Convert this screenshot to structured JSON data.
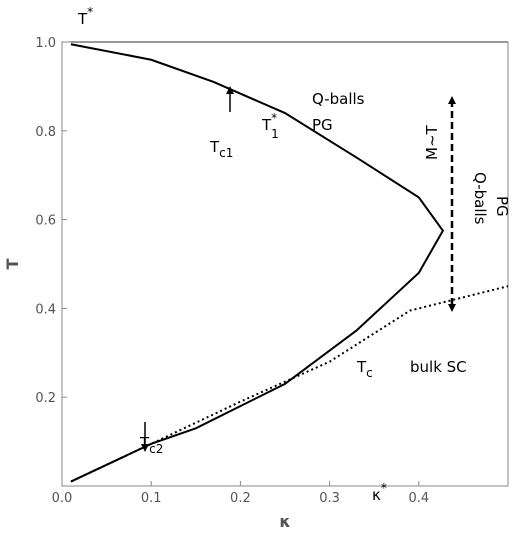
{
  "chart_data": {
    "type": "line",
    "xlabel": "κ",
    "ylabel": "T",
    "xlim": [
      0,
      0.5
    ],
    "ylim": [
      0,
      1.0
    ],
    "xticks": [
      {
        "value": 0,
        "label": "0.0"
      },
      0.1,
      0.2,
      0.3,
      0.4
    ],
    "yticks": [
      0.2,
      0.4,
      0.6,
      0.8,
      {
        "value": 1,
        "label": "1.0"
      }
    ],
    "series": [
      {
        "color": "#000000",
        "style": "solid",
        "x": [
          0.01,
          0.1,
          0.17,
          0.25,
          0.33,
          0.4,
          0.427,
          0.4,
          0.33,
          0.25,
          0.15,
          0.1,
          0.01
        ],
        "values": [
          0.995,
          0.96,
          0.91,
          0.84,
          0.74,
          0.65,
          0.575,
          0.48,
          0.35,
          0.23,
          0.13,
          0.095,
          0.01
        ]
      },
      {
        "color": "#000000",
        "style": "dotted",
        "x": [
          0.01,
          0.1,
          0.2,
          0.3,
          0.39,
          0.5
        ],
        "values": [
          0.01,
          0.095,
          0.19,
          0.28,
          0.395,
          0.45
        ]
      },
      {
        "color": "#999999",
        "style": "solid",
        "x": [
          0.01,
          0.5
        ],
        "values": [
          1.0,
          1.0
        ]
      }
    ],
    "annotations": [
      {
        "text": "T",
        "sup": "*"
      },
      {
        "text": "T",
        "sub": "c1"
      },
      {
        "text": "T",
        "sup": "*",
        "sub": "1"
      },
      {
        "text": "Q-balls"
      },
      {
        "text": "PG"
      },
      {
        "text": "M~T"
      },
      {
        "text": "Q-balls"
      },
      {
        "text": "PG"
      },
      {
        "text": "T",
        "sub": "c"
      },
      {
        "text": "bulk SC"
      },
      {
        "text": "T",
        "sub": "c2"
      },
      {
        "text": "κ",
        "sup": "*"
      }
    ]
  }
}
